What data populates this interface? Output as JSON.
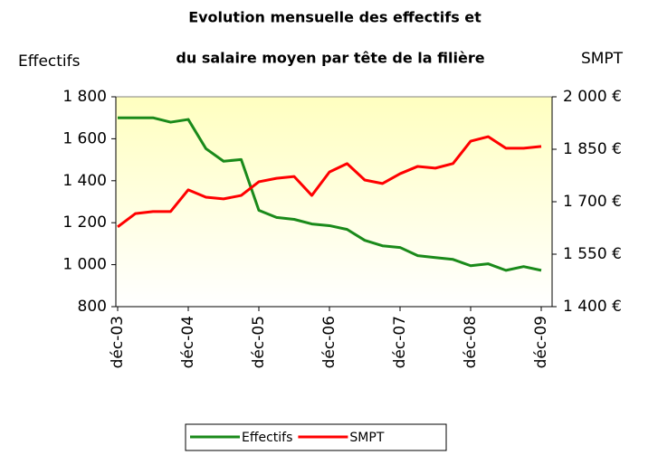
{
  "chart_data": {
    "type": "line",
    "title": "Evolution mensuelle des effectifs et",
    "subtitle": "du salaire moyen par tête de la filière",
    "y_label": "Effectifs",
    "y2_label": "SMPT",
    "categories": [
      "déc-03",
      null,
      null,
      null,
      "déc-04",
      null,
      null,
      null,
      "déc-05",
      null,
      null,
      null,
      "déc-06",
      null,
      null,
      null,
      "déc-07",
      null,
      null,
      null,
      "déc-08",
      null,
      null,
      null,
      "déc-09"
    ],
    "series": [
      {
        "name": "Effectifs",
        "color": "#1a8a1a",
        "values": [
          1700,
          1700,
          1700,
          1679,
          1692,
          1553,
          1493,
          1501,
          1259,
          1225,
          1216,
          1194,
          1186,
          1168,
          1116,
          1090,
          1082,
          1043,
          1034,
          1025,
          995,
          1004,
          973,
          991,
          973
        ]
      },
      {
        "name": "SMPT",
        "color": "#ff0000",
        "axis": "y2",
        "values": [
          1628,
          1666,
          1672,
          1672,
          1734,
          1713,
          1708,
          1718,
          1757,
          1767,
          1772,
          1718,
          1785,
          1809,
          1762,
          1752,
          1780,
          1801,
          1796,
          1809,
          1873,
          1886,
          1853,
          1853,
          1858
        ]
      }
    ],
    "ylim": [
      800,
      1800
    ],
    "yticks": [
      800,
      {
        "value": 1000,
        "label": "1 000"
      },
      {
        "value": 1200,
        "label": "1 200"
      },
      {
        "value": 1400,
        "label": "1 400"
      },
      {
        "value": 1600,
        "label": "1 600"
      },
      {
        "value": 1800,
        "label": "1 800"
      }
    ],
    "y2lim": [
      1400,
      2000
    ],
    "y2ticks": [
      {
        "value": 1400,
        "label": "1 400 €"
      },
      {
        "value": 1550,
        "label": "1 550 €"
      },
      {
        "value": 1700,
        "label": "1 700 €"
      },
      {
        "value": 1850,
        "label": "1 850 €"
      },
      {
        "value": 2000,
        "label": "2 000 €"
      }
    ],
    "legend": "bottom"
  }
}
